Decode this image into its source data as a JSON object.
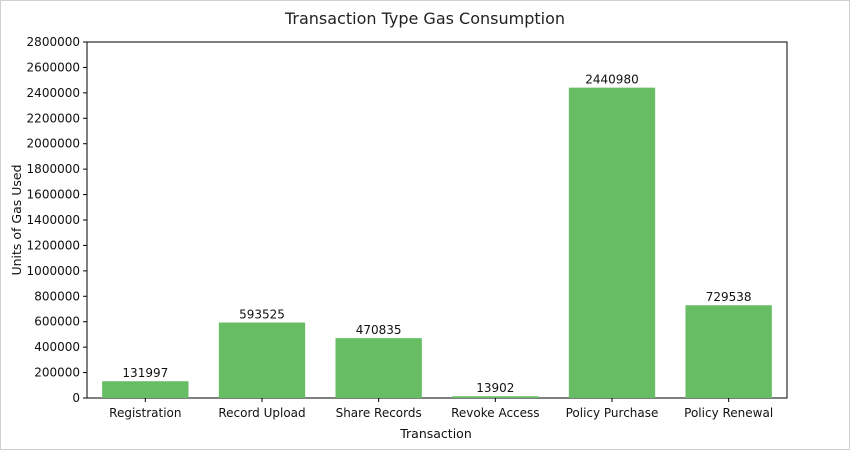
{
  "chart_data": {
    "type": "bar",
    "title": "Transaction Type Gas Consumption",
    "xlabel": "Transaction",
    "ylabel": "Units of Gas Used",
    "categories": [
      "Registration",
      "Record Upload",
      "Share Records",
      "Revoke Access",
      "Policy Purchase",
      "Policy Renewal"
    ],
    "values": [
      131997,
      593525,
      470835,
      13902,
      2440980,
      729538
    ],
    "ylim": [
      0,
      2800000
    ],
    "yticks": [
      "0",
      "200000",
      "400000",
      "600000",
      "800000",
      "1000000",
      "1200000",
      "1400000",
      "1600000",
      "1800000",
      "2000000",
      "2200000",
      "2400000",
      "2600000",
      "2800000"
    ],
    "bar_color": "#66bd63",
    "grid": false,
    "legend": "none"
  }
}
